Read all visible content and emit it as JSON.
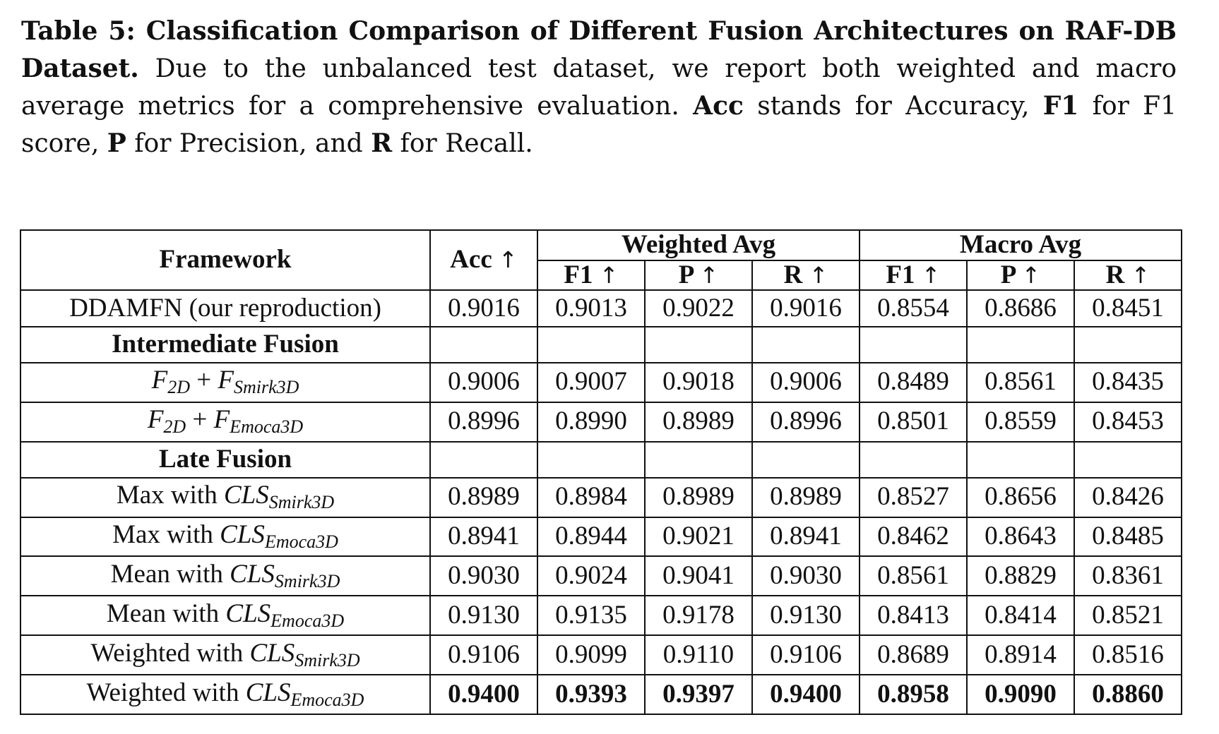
{
  "caption": {
    "label": "Table 5: Classification Comparison of Different Fusion Architectures on RAF-DB Dataset.",
    "text_1": " Due to the unbalanced test dataset, we report both weighted and macro average metrics for a comprehensive evaluation. ",
    "acc_abbr": "Acc",
    "text_2": " stands for Accuracy, ",
    "f1_abbr": "F1",
    "text_3": " for F1 score, ",
    "p_abbr": "P",
    "text_4": " for Precision, and ",
    "r_abbr": "R",
    "text_5": " for Recall."
  },
  "table": {
    "headers": {
      "framework": "Framework",
      "acc": "Acc",
      "weighted_avg": "Weighted Avg",
      "macro_avg": "Macro Avg",
      "f1": "F1",
      "p": "P",
      "r": "R",
      "arrow": "↑"
    },
    "baseline": {
      "name": "DDAMFN (our reproduction)",
      "values": [
        "0.9016",
        "0.9013",
        "0.9022",
        "0.9016",
        "0.8554",
        "0.8686",
        "0.8451"
      ]
    },
    "intermediate": {
      "title": "Intermediate Fusion",
      "rows": [
        {
          "a": "F",
          "a_sub": "2D",
          "plus": " + ",
          "b": "F",
          "b_sub": "Smirk3D",
          "values": [
            "0.9006",
            "0.9007",
            "0.9018",
            "0.9006",
            "0.8489",
            "0.8561",
            "0.8435"
          ]
        },
        {
          "a": "F",
          "a_sub": "2D",
          "plus": " + ",
          "b": "F",
          "b_sub": "Emoca3D",
          "values": [
            "0.8996",
            "0.8990",
            "0.8989",
            "0.8996",
            "0.8501",
            "0.8559",
            "0.8453"
          ]
        }
      ]
    },
    "late": {
      "title": "Late Fusion",
      "rows": [
        {
          "prefix": "Max with ",
          "cls": "CLS",
          "sub": "Smirk3D",
          "values": [
            "0.8989",
            "0.8984",
            "0.8989",
            "0.8989",
            "0.8527",
            "0.8656",
            "0.8426"
          ]
        },
        {
          "prefix": "Max with ",
          "cls": "CLS",
          "sub": "Emoca3D",
          "values": [
            "0.8941",
            "0.8944",
            "0.9021",
            "0.8941",
            "0.8462",
            "0.8643",
            "0.8485"
          ]
        },
        {
          "prefix": "Mean with ",
          "cls": "CLS",
          "sub": "Smirk3D",
          "values": [
            "0.9030",
            "0.9024",
            "0.9041",
            "0.9030",
            "0.8561",
            "0.8829",
            "0.8361"
          ]
        },
        {
          "prefix": "Mean with ",
          "cls": "CLS",
          "sub": "Emoca3D",
          "values": [
            "0.9130",
            "0.9135",
            "0.9178",
            "0.9130",
            "0.8413",
            "0.8414",
            "0.8521"
          ]
        },
        {
          "prefix": "Weighted with ",
          "cls": "CLS",
          "sub": "Smirk3D",
          "values": [
            "0.9106",
            "0.9099",
            "0.9110",
            "0.9106",
            "0.8689",
            "0.8914",
            "0.8516"
          ]
        },
        {
          "prefix": "Weighted with ",
          "cls": "CLS",
          "sub": "Emoca3D",
          "values": [
            "0.9400",
            "0.9393",
            "0.9397",
            "0.9400",
            "0.8958",
            "0.9090",
            "0.8860"
          ],
          "bold": true
        }
      ]
    }
  }
}
